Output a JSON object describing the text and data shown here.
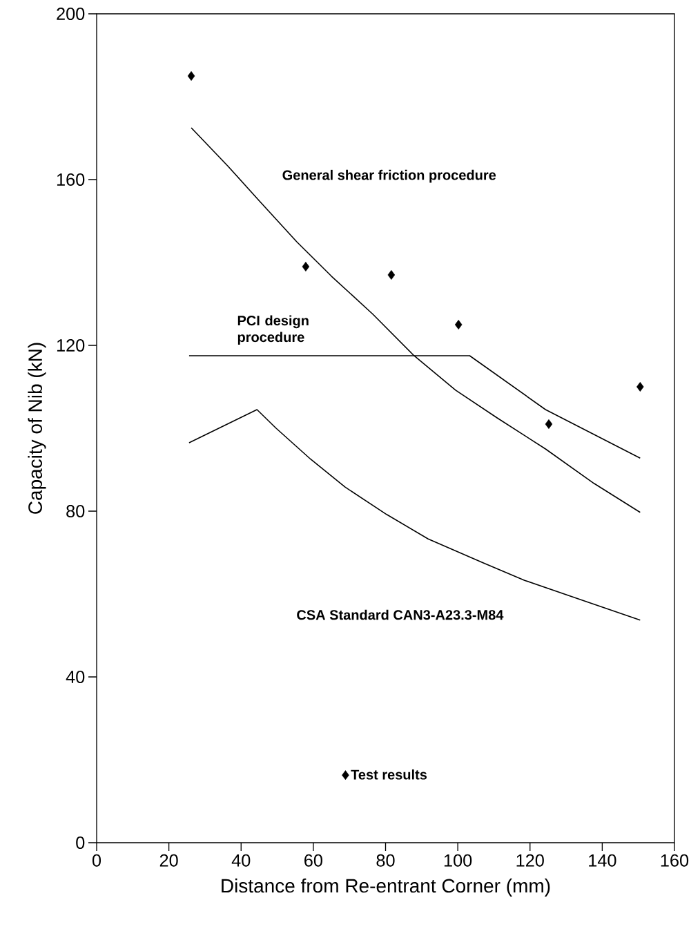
{
  "chart_data": {
    "type": "line",
    "xlabel": "Distance from Re-entrant Corner (mm)",
    "ylabel": "Capacity of Nib (kN)",
    "xlim": [
      0,
      160
    ],
    "ylim": [
      0,
      200
    ],
    "xticks": [
      0,
      20,
      40,
      60,
      80,
      100,
      120,
      140,
      160
    ],
    "yticks": [
      0,
      40,
      80,
      120,
      160,
      200
    ],
    "legend": "bottom",
    "series": [
      {
        "name": "General shear friction procedure",
        "marker": "none",
        "color": "#000000",
        "x": [
          26.2,
          36.3,
          44.9,
          55.4,
          65,
          76.5,
          87.9,
          99.4,
          110.9,
          124.3,
          137.7,
          150.5
        ],
        "values": [
          172.5,
          163.3,
          155,
          145,
          136.7,
          127.5,
          117.5,
          109.2,
          102.5,
          95,
          86.7,
          79.7
        ]
      },
      {
        "name": "PCI design procedure",
        "marker": "none",
        "color": "#000000",
        "x": [
          25.6,
          103.3,
          124.3,
          150.5
        ],
        "values": [
          117.5,
          117.5,
          104.5,
          92.8
        ]
      },
      {
        "name": "CSA Standard CAN3-A23.3-M84",
        "marker": "none",
        "color": "#000000",
        "x": [
          25.6,
          44.4,
          49.7,
          59.3,
          68.8,
          80.3,
          91.8,
          107.1,
          118.5,
          133.8,
          150.5
        ],
        "values": [
          96.5,
          104.5,
          100,
          92.5,
          85.8,
          79.2,
          73.3,
          67.5,
          63.3,
          58.7,
          53.7
        ]
      },
      {
        "name": "Test results",
        "type": "scatter",
        "marker": "diamond",
        "color": "#000000",
        "x": [
          26.2,
          57.9,
          81.6,
          100.2,
          125.2,
          150.5
        ],
        "values": [
          185,
          139,
          137,
          125,
          101,
          110
        ]
      }
    ]
  }
}
